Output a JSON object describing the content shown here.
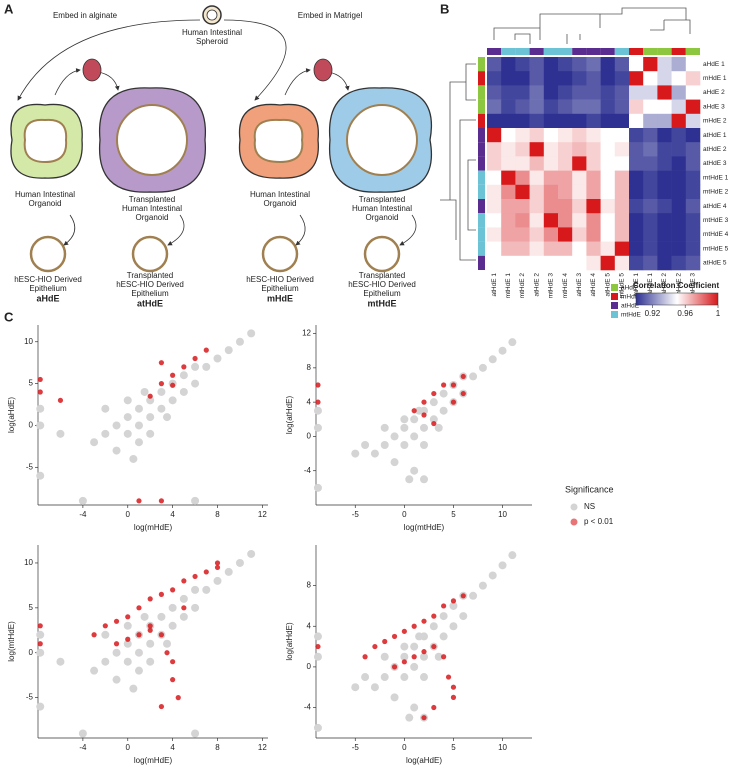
{
  "panels": [
    "A",
    "B",
    "C"
  ],
  "diagram": {
    "alginate": "Embed in alginate",
    "matrigel": "Embed in Matrigel",
    "spheroid": [
      "Human Intestinal",
      "Spheroid"
    ],
    "hio_left": [
      "Human Intestinal",
      "Organoid"
    ],
    "thio_left": [
      "Transplanted",
      "Human Intestinal",
      "Organoid"
    ],
    "hio_right": [
      "Human Intestinal",
      "Organoid"
    ],
    "thio_right": [
      "Transplanted",
      "Human Intestinal",
      "Organoid"
    ],
    "epi_a": [
      "hESC-HIO Derived",
      "Epithelium"
    ],
    "epi_at": [
      "Transplanted",
      "hESC-HIO Derived",
      "Epithelium"
    ],
    "epi_m": [
      "hESC-HIO Derived",
      "Epithelium"
    ],
    "epi_mt": [
      "Transplanted",
      "hESC-HIO Derived",
      "Epithelium"
    ],
    "code_a": "aHdE",
    "code_at": "atHdE",
    "code_m": "mHdE",
    "code_mt": "mtHdE"
  },
  "chart_data": [
    {
      "type": "heatmap",
      "rows": [
        "aHdE 1",
        "mHdE 1",
        "aHdE 2",
        "aHdE 3",
        "mHdE 2",
        "atHdE 1",
        "atHdE 2",
        "atHdE 3",
        "mtHdE 1",
        "mtHdE 2",
        "atHdE 4",
        "mtHdE 3",
        "mtHdE 4",
        "mtHdE 5",
        "atHdE 5"
      ],
      "columns": [
        "atHdE 1",
        "mtHdE 1",
        "mtHdE 2",
        "atHdE 2",
        "mtHdE 3",
        "mtHdE 4",
        "atHdE 3",
        "atHdE 4",
        "atHdE 5",
        "mtHdE 5",
        "mHdE 1",
        "aHdE 1",
        "aHdE 2",
        "mHdE 2",
        "aHdE 3"
      ],
      "row_colors": [
        "#8dc63f",
        "#d7191c",
        "#8dc63f",
        "#8dc63f",
        "#d7191c",
        "#5b2c8f",
        "#5b2c8f",
        "#5b2c8f",
        "#6cc3d5",
        "#6cc3d5",
        "#5b2c8f",
        "#6cc3d5",
        "#6cc3d5",
        "#6cc3d5",
        "#5b2c8f"
      ],
      "col_colors": [
        "#5b2c8f",
        "#6cc3d5",
        "#6cc3d5",
        "#5b2c8f",
        "#6cc3d5",
        "#6cc3d5",
        "#5b2c8f",
        "#5b2c8f",
        "#5b2c8f",
        "#6cc3d5",
        "#d7191c",
        "#8dc63f",
        "#8dc63f",
        "#d7191c",
        "#8dc63f"
      ],
      "values": [
        [
          0.91,
          0.9,
          0.905,
          0.91,
          0.9,
          0.905,
          0.91,
          0.915,
          0.9,
          0.91,
          0.95,
          1,
          0.94,
          0.93,
          0.95
        ],
        [
          0.905,
          0.9,
          0.9,
          0.91,
          0.9,
          0.9,
          0.905,
          0.91,
          0.9,
          0.905,
          1,
          0.95,
          0.94,
          0.95,
          0.96
        ],
        [
          0.91,
          0.905,
          0.905,
          0.915,
          0.9,
          0.905,
          0.91,
          0.91,
          0.905,
          0.91,
          0.94,
          0.94,
          1,
          0.93,
          0.95
        ],
        [
          0.915,
          0.905,
          0.91,
          0.915,
          0.905,
          0.91,
          0.915,
          0.915,
          0.905,
          0.91,
          0.96,
          0.95,
          0.95,
          0.94,
          1
        ],
        [
          0.9,
          0.895,
          0.9,
          0.905,
          0.895,
          0.9,
          0.9,
          0.905,
          0.9,
          0.9,
          0.95,
          0.93,
          0.93,
          1,
          0.94
        ],
        [
          1,
          0.95,
          0.955,
          0.96,
          0.95,
          0.955,
          0.96,
          0.955,
          0.95,
          0.95,
          0.905,
          0.91,
          0.9,
          0.905,
          0.9
        ],
        [
          0.96,
          0.955,
          0.96,
          1,
          0.955,
          0.96,
          0.965,
          0.96,
          0.95,
          0.955,
          0.91,
          0.915,
          0.905,
          0.905,
          0.91
        ],
        [
          0.96,
          0.955,
          0.955,
          0.965,
          0.955,
          0.96,
          1,
          0.96,
          0.95,
          0.95,
          0.91,
          0.91,
          0.905,
          0.9,
          0.91
        ],
        [
          0.95,
          1,
          0.975,
          0.955,
          0.97,
          0.97,
          0.955,
          0.97,
          0.95,
          0.965,
          0.9,
          0.905,
          0.9,
          0.9,
          0.905
        ],
        [
          0.955,
          0.975,
          1,
          0.96,
          0.975,
          0.97,
          0.955,
          0.97,
          0.95,
          0.965,
          0.9,
          0.905,
          0.9,
          0.9,
          0.905
        ],
        [
          0.955,
          0.97,
          0.97,
          0.96,
          0.975,
          0.975,
          0.96,
          1,
          0.955,
          0.965,
          0.905,
          0.91,
          0.905,
          0.9,
          0.91
        ],
        [
          0.95,
          0.97,
          0.975,
          0.955,
          1,
          0.975,
          0.955,
          0.975,
          0.95,
          0.965,
          0.9,
          0.905,
          0.9,
          0.9,
          0.905
        ],
        [
          0.955,
          0.97,
          0.97,
          0.96,
          0.975,
          1,
          0.96,
          0.975,
          0.95,
          0.965,
          0.9,
          0.905,
          0.9,
          0.9,
          0.905
        ],
        [
          0.95,
          0.965,
          0.965,
          0.955,
          0.965,
          0.965,
          0.95,
          0.965,
          0.955,
          1,
          0.9,
          0.905,
          0.9,
          0.9,
          0.905
        ],
        [
          0.95,
          0.95,
          0.95,
          0.95,
          0.95,
          0.95,
          0.95,
          0.955,
          1,
          0.955,
          0.905,
          0.91,
          0.9,
          0.905,
          0.91
        ]
      ],
      "colormap": [
        "#2e3192",
        "#ffffff",
        "#d7191c"
      ],
      "clim": [
        0.9,
        1
      ],
      "cticks": [
        0.92,
        0.96,
        1
      ],
      "colorbar_title": "Correlation Coefficient",
      "group_legend": [
        {
          "name": "aHdE",
          "color": "#8dc63f"
        },
        {
          "name": "mHdE",
          "color": "#d7191c"
        },
        {
          "name": "atHdE",
          "color": "#5b2c8f"
        },
        {
          "name": "mtHdE",
          "color": "#6cc3d5"
        }
      ]
    },
    {
      "type": "scatter",
      "xlabel": "log(mHdE)",
      "ylabel": "log(aHdE)",
      "xlim": [
        -8,
        12.5
      ],
      "ylim": [
        -9.5,
        12
      ],
      "xticks": [
        -4,
        0,
        4,
        8,
        12
      ],
      "yticks": [
        -5,
        0,
        5,
        10
      ],
      "series": [
        {
          "name": "NS",
          "color": "#d4d4d4",
          "x": [
            -3,
            -2,
            -1,
            0,
            0,
            1,
            1,
            2,
            2,
            3,
            3,
            4,
            4,
            5,
            5,
            6,
            6,
            7,
            8,
            9,
            10,
            11,
            -1,
            1,
            -2,
            -7.8,
            -7.8,
            -7.8,
            -4,
            6,
            -6,
            0,
            2,
            0.5,
            1.5,
            3.5
          ],
          "values": [
            -2,
            -1,
            0,
            -1,
            1,
            0,
            2,
            1,
            3,
            2,
            4,
            3,
            5,
            4,
            6,
            5,
            7,
            7,
            8,
            9,
            10,
            11,
            -3,
            -2,
            2,
            -6,
            0,
            2,
            -9,
            -9,
            -1,
            3,
            -1,
            -4,
            4,
            1
          ]
        },
        {
          "name": "p < 0.01",
          "color": "#d7191c",
          "x": [
            2,
            3,
            4,
            5,
            3,
            6,
            -6,
            -7.8,
            -7.8,
            1,
            3,
            7,
            4
          ],
          "values": [
            3.5,
            5,
            6,
            7,
            7.5,
            8,
            3,
            4,
            5.5,
            -9,
            -9,
            9,
            4.8
          ]
        }
      ]
    },
    {
      "type": "scatter",
      "xlabel": "log(mtHdE)",
      "ylabel": "log(atHdE)",
      "xlim": [
        -9,
        13
      ],
      "ylim": [
        -8,
        13
      ],
      "xticks": [
        -5,
        0,
        5,
        10
      ],
      "yticks": [
        -4,
        0,
        4,
        8,
        12
      ],
      "series": [
        {
          "name": "NS",
          "color": "#d4d4d4",
          "x": [
            -3,
            -2,
            -1,
            0,
            0,
            1,
            1,
            2,
            2,
            3,
            3,
            4,
            4,
            5,
            5,
            6,
            6,
            7,
            8,
            9,
            10,
            11,
            -1,
            1,
            -2,
            -8.8,
            -8.8,
            -8.8,
            -5,
            2,
            -4,
            0,
            2,
            0.5,
            1.5,
            3.5
          ],
          "values": [
            -2,
            -1,
            0,
            -1,
            1,
            0,
            2,
            1,
            3,
            2,
            4,
            3,
            5,
            4,
            6,
            5,
            7,
            7,
            8,
            9,
            10,
            11,
            -3,
            -4,
            1,
            -6,
            1,
            3,
            -2,
            -5,
            -1,
            2,
            -1,
            -5,
            3,
            1
          ]
        },
        {
          "name": "p < 0.01",
          "color": "#d7191c",
          "x": [
            1,
            2,
            3,
            4,
            5,
            6,
            2,
            3,
            5,
            6,
            -8.8,
            -8.8
          ],
          "values": [
            3,
            4,
            5,
            6,
            6,
            7,
            2.5,
            1.5,
            4,
            5,
            4,
            6
          ]
        }
      ]
    },
    {
      "type": "scatter",
      "xlabel": "log(mHdE)",
      "ylabel": "log(mtHdE)",
      "xlim": [
        -8,
        12.5
      ],
      "ylim": [
        -9.5,
        12
      ],
      "xticks": [
        -4,
        0,
        4,
        8,
        12
      ],
      "yticks": [
        -5,
        0,
        5,
        10
      ],
      "series": [
        {
          "name": "NS",
          "color": "#d4d4d4",
          "x": [
            -3,
            -2,
            -1,
            0,
            0,
            1,
            1,
            2,
            2,
            3,
            3,
            4,
            4,
            5,
            5,
            6,
            6,
            7,
            8,
            9,
            10,
            11,
            -1,
            1,
            -2,
            -7.8,
            -7.8,
            -7.8,
            -4,
            6,
            -6,
            0,
            2,
            0.5,
            1.5,
            3.5
          ],
          "values": [
            -2,
            -1,
            0,
            -1,
            1,
            0,
            2,
            1,
            3,
            2,
            4,
            3,
            5,
            4,
            6,
            5,
            7,
            7,
            8,
            9,
            10,
            11,
            -3,
            -2,
            2,
            -6,
            0,
            2,
            -9,
            -9,
            -1,
            3,
            -1,
            -4,
            4,
            1
          ]
        },
        {
          "name": "p < 0.01",
          "color": "#d7191c",
          "x": [
            -3,
            -2,
            -1,
            0,
            1,
            2,
            3,
            4,
            5,
            6,
            7,
            8,
            -1,
            0,
            1,
            2,
            3,
            3.5,
            4,
            4,
            4.5,
            3,
            2,
            -7.8,
            -7.8,
            5,
            8
          ],
          "values": [
            2,
            3,
            3.5,
            4,
            5,
            6,
            6.5,
            7,
            8,
            8.5,
            9,
            9.5,
            1,
            1.5,
            2,
            2.5,
            2,
            0,
            -1,
            -3,
            -5,
            -6,
            3,
            1,
            3,
            5,
            10
          ]
        }
      ]
    },
    {
      "type": "scatter",
      "xlabel": "log(aHdE)",
      "ylabel": "log(atHdE)",
      "xlim": [
        -9,
        13
      ],
      "ylim": [
        -7,
        12
      ],
      "xticks": [
        -5,
        0,
        5,
        10
      ],
      "yticks": [
        -4,
        0,
        4,
        8
      ],
      "series": [
        {
          "name": "NS",
          "color": "#d4d4d4",
          "x": [
            -3,
            -2,
            -1,
            0,
            0,
            1,
            1,
            2,
            2,
            3,
            3,
            4,
            4,
            5,
            5,
            6,
            6,
            7,
            8,
            9,
            10,
            11,
            -1,
            1,
            -2,
            -8.8,
            -8.8,
            -8.8,
            -5,
            2,
            -4,
            0,
            2,
            0.5,
            1.5,
            3.5
          ],
          "values": [
            -2,
            -1,
            0,
            -1,
            1,
            0,
            2,
            1,
            3,
            2,
            4,
            3,
            5,
            4,
            6,
            5,
            7,
            7,
            8,
            9,
            10,
            11,
            -3,
            -4,
            1,
            -6,
            1,
            3,
            -2,
            -5,
            -1,
            2,
            -1,
            -5,
            3,
            1
          ]
        },
        {
          "name": "p < 0.01",
          "color": "#d7191c",
          "x": [
            -4,
            -3,
            -2,
            -1,
            0,
            1,
            2,
            3,
            4,
            5,
            6,
            -1,
            0,
            1,
            2,
            3,
            4,
            4.5,
            5,
            5,
            -8.8,
            3,
            2
          ],
          "values": [
            1,
            2,
            2.5,
            3,
            3.5,
            4,
            4.5,
            5,
            6,
            6.5,
            7,
            0,
            0.5,
            1,
            1.5,
            2,
            1,
            -1,
            -2,
            -3,
            2,
            -4,
            -5
          ]
        }
      ]
    }
  ],
  "legend": {
    "title": "Significance"
  }
}
